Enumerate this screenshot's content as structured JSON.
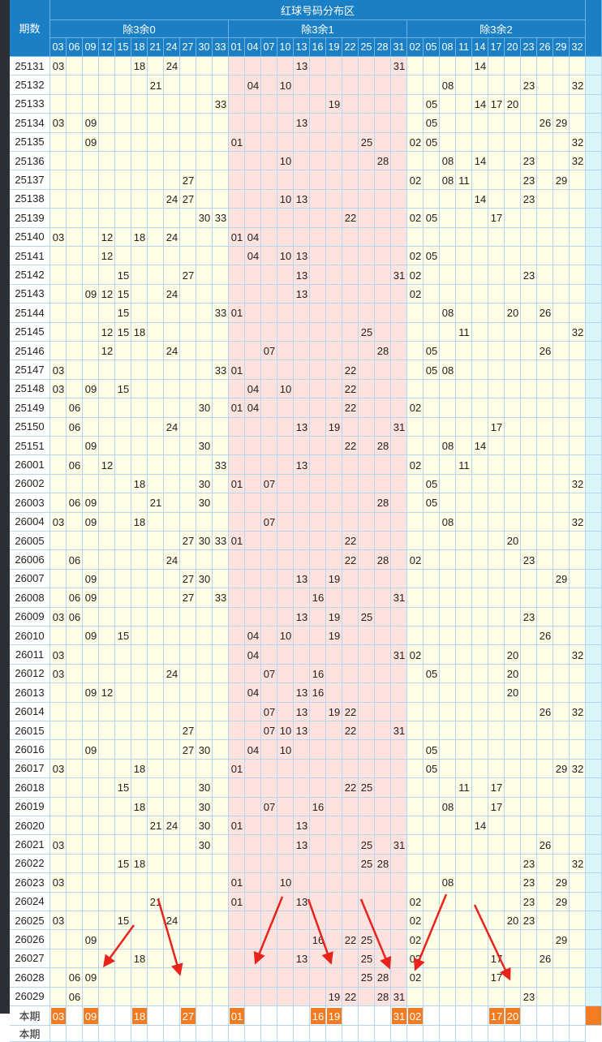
{
  "header": {
    "period_label": "期数",
    "title": "红球号码分布区",
    "groups": [
      {
        "name": "除3余0",
        "columns": [
          "03",
          "06",
          "09",
          "12",
          "15",
          "18",
          "21",
          "24",
          "27",
          "30",
          "33"
        ]
      },
      {
        "name": "除3余1",
        "columns": [
          "01",
          "04",
          "07",
          "10",
          "13",
          "16",
          "19",
          "22",
          "25",
          "28",
          "31"
        ]
      },
      {
        "name": "除3余2",
        "columns": [
          "02",
          "05",
          "08",
          "11",
          "14",
          "17",
          "20",
          "23",
          "26",
          "29",
          "32"
        ]
      }
    ]
  },
  "rows": [
    {
      "period": "25131",
      "numbers": [
        "03",
        "18",
        "24",
        "13",
        "31",
        "14"
      ]
    },
    {
      "period": "25132",
      "numbers": [
        "21",
        "04",
        "10",
        "08",
        "23",
        "32"
      ]
    },
    {
      "period": "25133",
      "numbers": [
        "33",
        "19",
        "05",
        "14",
        "17",
        "20"
      ]
    },
    {
      "period": "25134",
      "numbers": [
        "03",
        "09",
        "13",
        "05",
        "26",
        "29"
      ]
    },
    {
      "period": "25135",
      "numbers": [
        "09",
        "01",
        "25",
        "02",
        "05",
        "32"
      ]
    },
    {
      "period": "25136",
      "numbers": [
        "10",
        "28",
        "08",
        "14",
        "23",
        "32"
      ]
    },
    {
      "period": "25137",
      "numbers": [
        "27",
        "02",
        "08",
        "11",
        "23",
        "29"
      ]
    },
    {
      "period": "25138",
      "numbers": [
        "24",
        "27",
        "10",
        "13",
        "14",
        "23"
      ]
    },
    {
      "period": "25139",
      "numbers": [
        "30",
        "33",
        "22",
        "02",
        "05",
        "17"
      ]
    },
    {
      "period": "25140",
      "numbers": [
        "03",
        "12",
        "18",
        "24",
        "01",
        "04"
      ]
    },
    {
      "period": "25141",
      "numbers": [
        "12",
        "04",
        "10",
        "13",
        "02",
        "05"
      ]
    },
    {
      "period": "25142",
      "numbers": [
        "15",
        "27",
        "13",
        "31",
        "02",
        "23"
      ]
    },
    {
      "period": "25143",
      "numbers": [
        "09",
        "12",
        "15",
        "24",
        "13",
        "02"
      ]
    },
    {
      "period": "25144",
      "numbers": [
        "15",
        "33",
        "01",
        "08",
        "20",
        "26"
      ]
    },
    {
      "period": "25145",
      "numbers": [
        "12",
        "15",
        "18",
        "25",
        "11",
        "32"
      ]
    },
    {
      "period": "25146",
      "numbers": [
        "12",
        "24",
        "07",
        "28",
        "05",
        "26"
      ]
    },
    {
      "period": "25147",
      "numbers": [
        "03",
        "33",
        "01",
        "22",
        "05",
        "08"
      ]
    },
    {
      "period": "25148",
      "numbers": [
        "03",
        "09",
        "15",
        "04",
        "10",
        "22"
      ]
    },
    {
      "period": "25149",
      "numbers": [
        "06",
        "30",
        "01",
        "04",
        "22",
        "02"
      ]
    },
    {
      "period": "25150",
      "numbers": [
        "06",
        "24",
        "13",
        "19",
        "31",
        "17"
      ]
    },
    {
      "period": "25151",
      "numbers": [
        "09",
        "30",
        "22",
        "28",
        "08",
        "14"
      ]
    },
    {
      "period": "26001",
      "numbers": [
        "06",
        "12",
        "33",
        "13",
        "02",
        "11"
      ]
    },
    {
      "period": "26002",
      "numbers": [
        "18",
        "30",
        "01",
        "07",
        "05",
        "32"
      ]
    },
    {
      "period": "26003",
      "numbers": [
        "06",
        "09",
        "21",
        "30",
        "28",
        "05"
      ]
    },
    {
      "period": "26004",
      "numbers": [
        "03",
        "09",
        "18",
        "07",
        "08",
        "32"
      ]
    },
    {
      "period": "26005",
      "numbers": [
        "27",
        "30",
        "33",
        "01",
        "22",
        "20"
      ]
    },
    {
      "period": "26006",
      "numbers": [
        "06",
        "24",
        "22",
        "28",
        "02",
        "23"
      ]
    },
    {
      "period": "26007",
      "numbers": [
        "09",
        "27",
        "30",
        "13",
        "19",
        "29"
      ]
    },
    {
      "period": "26008",
      "numbers": [
        "06",
        "09",
        "27",
        "33",
        "16",
        "31"
      ]
    },
    {
      "period": "26009",
      "numbers": [
        "03",
        "06",
        "13",
        "19",
        "25",
        "23"
      ]
    },
    {
      "period": "26010",
      "numbers": [
        "09",
        "15",
        "04",
        "10",
        "19",
        "26"
      ]
    },
    {
      "period": "26011",
      "numbers": [
        "03",
        "04",
        "31",
        "02",
        "20",
        "32"
      ]
    },
    {
      "period": "26012",
      "numbers": [
        "03",
        "24",
        "07",
        "16",
        "05",
        "20"
      ]
    },
    {
      "period": "26013",
      "numbers": [
        "09",
        "12",
        "04",
        "13",
        "16",
        "20"
      ]
    },
    {
      "period": "26014",
      "numbers": [
        "07",
        "13",
        "19",
        "22",
        "26",
        "32"
      ]
    },
    {
      "period": "26015",
      "numbers": [
        "27",
        "07",
        "10",
        "13",
        "22",
        "31"
      ]
    },
    {
      "period": "26016",
      "numbers": [
        "09",
        "27",
        "30",
        "04",
        "10",
        "05"
      ]
    },
    {
      "period": "26017",
      "numbers": [
        "03",
        "18",
        "01",
        "05",
        "29",
        "32"
      ]
    },
    {
      "period": "26018",
      "numbers": [
        "15",
        "30",
        "22",
        "25",
        "11",
        "17"
      ]
    },
    {
      "period": "26019",
      "numbers": [
        "18",
        "30",
        "07",
        "16",
        "08",
        "17"
      ]
    },
    {
      "period": "26020",
      "numbers": [
        "21",
        "24",
        "30",
        "01",
        "13",
        "14"
      ]
    },
    {
      "period": "26021",
      "numbers": [
        "03",
        "30",
        "13",
        "25",
        "31",
        "26"
      ]
    },
    {
      "period": "26022",
      "numbers": [
        "15",
        "18",
        "25",
        "28",
        "23",
        "32"
      ]
    },
    {
      "period": "26023",
      "numbers": [
        "03",
        "01",
        "10",
        "08",
        "23",
        "29"
      ]
    },
    {
      "period": "26024",
      "numbers": [
        "21",
        "01",
        "13",
        "02",
        "23",
        "29"
      ]
    },
    {
      "period": "26025",
      "numbers": [
        "03",
        "15",
        "24",
        "02",
        "20",
        "23"
      ]
    },
    {
      "period": "26026",
      "numbers": [
        "09",
        "16",
        "22",
        "25",
        "02",
        "29"
      ]
    },
    {
      "period": "26027",
      "numbers": [
        "18",
        "13",
        "25",
        "02",
        "17",
        "26"
      ]
    },
    {
      "period": "26028",
      "numbers": [
        "06",
        "09",
        "25",
        "28",
        "02",
        "17"
      ]
    },
    {
      "period": "26029",
      "numbers": [
        "06",
        "19",
        "22",
        "28",
        "31",
        "23"
      ]
    }
  ],
  "current": {
    "label": "本期",
    "numbers": [
      "03",
      "09",
      "18",
      "27",
      "01",
      "16",
      "19",
      "31",
      "02",
      "17",
      "20"
    ]
  },
  "next_row_label": "本期"
}
